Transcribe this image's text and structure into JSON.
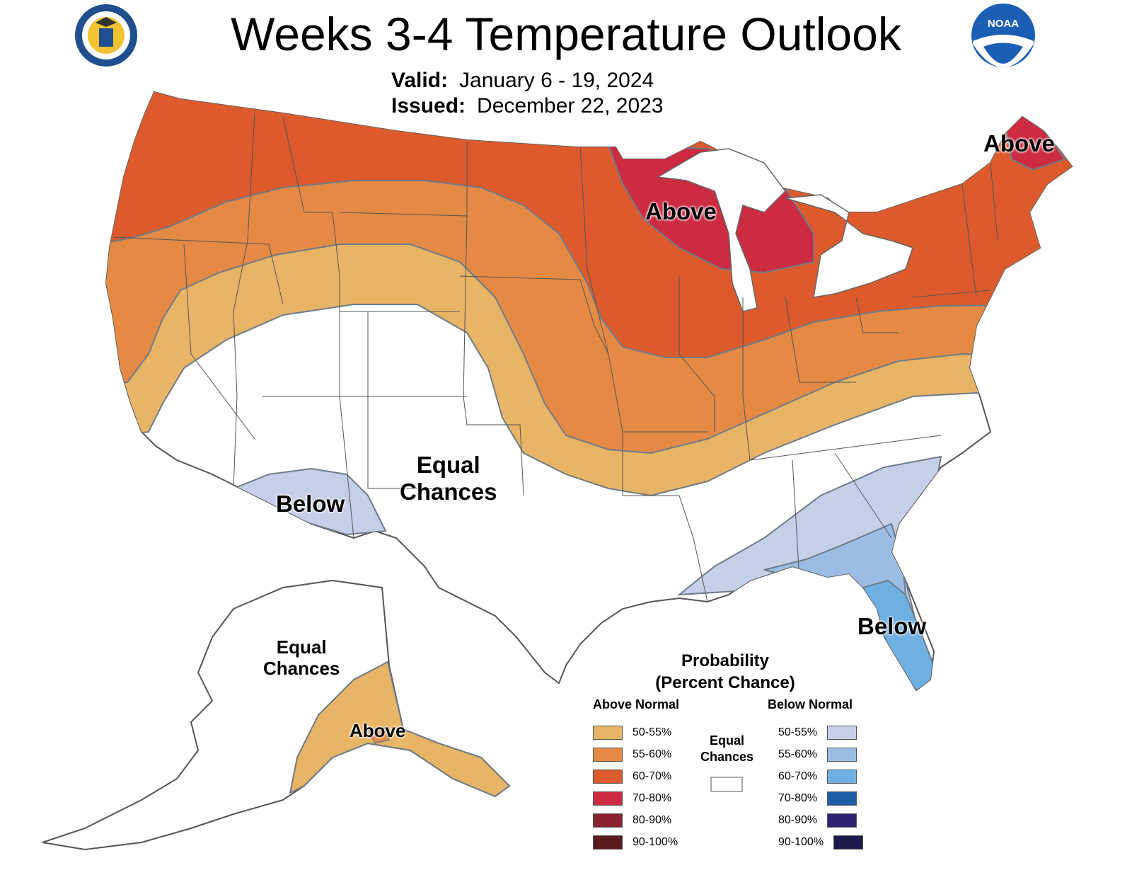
{
  "header": {
    "title": "Weeks 3-4 Temperature Outlook",
    "valid_label": "Valid:",
    "valid_value": "January 6 - 19, 2024",
    "issued_label": "Issued:",
    "issued_value": "December 22, 2023",
    "left_seal": "department-of-commerce-seal",
    "right_seal": "noaa-logo",
    "noaa_text": "NOAA"
  },
  "map_labels": {
    "above_maine": "Above",
    "above_great_lakes": "Above",
    "below_southwest": "Below",
    "equal_chances_conus": "Equal\nChances",
    "below_florida": "Below",
    "equal_chances_alaska": "Equal\nChances",
    "above_alaska": "Above"
  },
  "legend": {
    "title": "Probability\n(Percent Chance)",
    "above_header": "Above Normal",
    "below_header": "Below Normal",
    "equal_label": "Equal\nChances",
    "above": [
      {
        "label": "50-55%",
        "color": "#e8b466"
      },
      {
        "label": "55-60%",
        "color": "#e48a45"
      },
      {
        "label": "60-70%",
        "color": "#dc5a2c"
      },
      {
        "label": "70-80%",
        "color": "#cc2b42"
      },
      {
        "label": "80-90%",
        "color": "#8b2232"
      },
      {
        "label": "90-100%",
        "color": "#5a1a1e"
      }
    ],
    "below": [
      {
        "label": "50-55%",
        "color": "#c6cfe8"
      },
      {
        "label": "55-60%",
        "color": "#9cbde3"
      },
      {
        "label": "60-70%",
        "color": "#6fb0e2"
      },
      {
        "label": "70-80%",
        "color": "#1f5fa8"
      },
      {
        "label": "80-90%",
        "color": "#2d2070"
      },
      {
        "label": "90-100%",
        "color": "#1c1a4a"
      }
    ],
    "equal_color": "#ffffff"
  }
}
